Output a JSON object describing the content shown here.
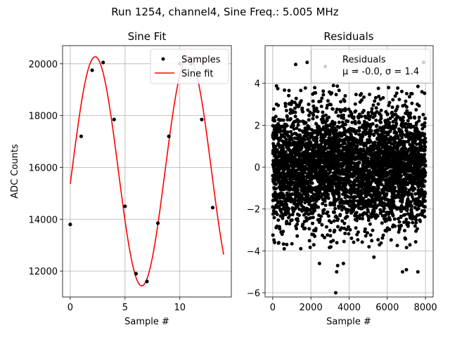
{
  "figure": {
    "suptitle": "Run 1254, channel4, Sine Freq.: 5.005 MHz"
  },
  "colors": {
    "samples": "#000000",
    "fit": "#ff0000",
    "grid": "#b0b0b0"
  },
  "chart_data": [
    {
      "type": "scatter",
      "title": "Sine Fit",
      "xlabel": "Sample #",
      "ylabel": "ADC Counts",
      "xlim": [
        -0.7,
        14.7
      ],
      "ylim": [
        11000,
        20700
      ],
      "xticks": [
        0,
        5,
        10
      ],
      "yticks": [
        12000,
        14000,
        16000,
        18000,
        20000
      ],
      "grid": true,
      "legend_position": "top-right",
      "series": [
        {
          "name": "Samples",
          "kind": "points",
          "x": [
            0,
            1,
            2,
            3,
            4,
            5,
            6,
            7,
            8,
            9,
            10,
            11,
            12,
            13
          ],
          "y": [
            13800,
            17200,
            19750,
            20050,
            17850,
            14500,
            11900,
            11600,
            13850,
            17200,
            20000,
            20000,
            17850,
            14450
          ]
        },
        {
          "name": "Sine fit",
          "kind": "line",
          "model": {
            "offset": 15850,
            "amplitude": 4420,
            "period_samples": 8.5,
            "phase_rad": -0.11,
            "x_start": 0,
            "x_end": 14
          }
        }
      ]
    },
    {
      "type": "scatter",
      "title": "Residuals",
      "xlabel": "Sample #",
      "ylabel": "",
      "xlim": [
        -400,
        8400
      ],
      "ylim": [
        -6.2,
        5.8
      ],
      "xticks": [
        0,
        2000,
        4000,
        6000,
        8000
      ],
      "yticks": [
        -6,
        -4,
        -2,
        0,
        2,
        4
      ],
      "grid": true,
      "legend_position": "top-right",
      "legend": [
        "Residuals",
        "μ = -0.0, σ = 1.4"
      ],
      "stats": {
        "mean": -0.0,
        "std": 1.4,
        "n_points": 8000
      },
      "outliers": {
        "x": [
          1200,
          1800,
          2450,
          2750,
          3300,
          3350,
          3400,
          3700,
          5300,
          6800,
          7000,
          7600,
          7900,
          600,
          4400,
          100
        ],
        "y": [
          4.9,
          5.0,
          -4.6,
          4.8,
          -6.0,
          -5.0,
          -4.7,
          -4.6,
          -4.3,
          -5.0,
          -4.9,
          -5.0,
          5.0,
          -3.9,
          4.6,
          -3.6
        ]
      }
    }
  ]
}
